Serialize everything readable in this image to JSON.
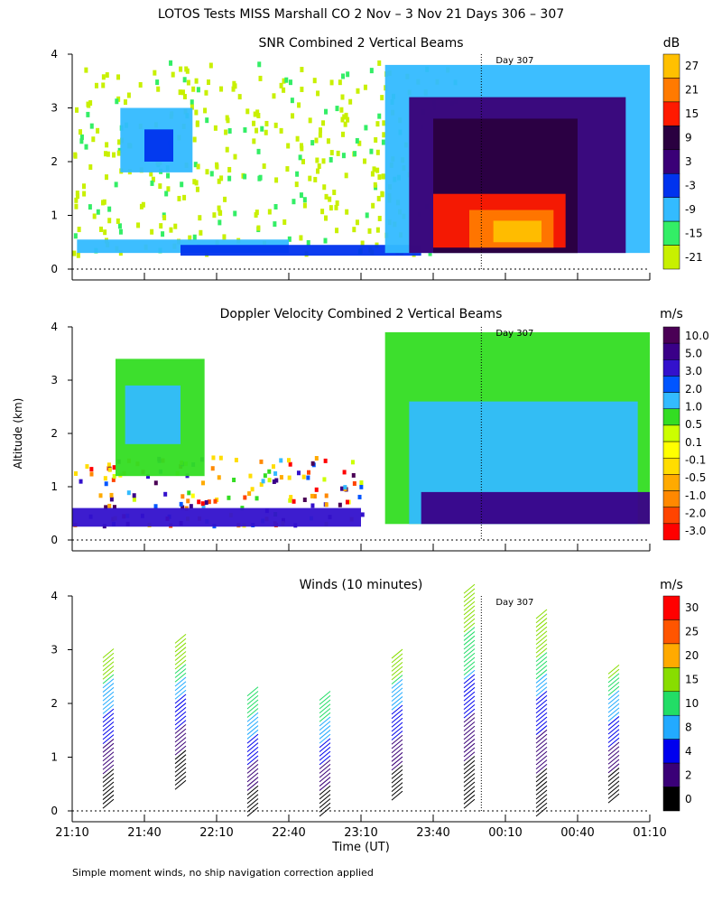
{
  "title": "LOTOS Tests MISS Marshall CO   2 Nov –  3 Nov 21 Days 306 – 307",
  "footnote": "Simple moment winds, no ship navigation correction applied",
  "day_marker_label": "Day 307",
  "x_axis": {
    "label": "Time (UT)",
    "ticks": [
      "21:10",
      "21:40",
      "22:10",
      "22:40",
      "23:10",
      "23:40",
      "00:10",
      "00:40",
      "01:10"
    ],
    "range_minutes": [
      0,
      240
    ],
    "day_boundary_minutes": 170
  },
  "y_axis": {
    "label": "Altitude (km)",
    "ticks": [
      "0",
      "1",
      "2",
      "3",
      "4"
    ],
    "range_km": [
      0,
      4
    ]
  },
  "colors": {
    "snr": [
      "#c8f000",
      "#33ee66",
      "#33bbff",
      "#0033ee",
      "#3a0077",
      "#2a0040",
      "#ff1a00",
      "#ff7a00",
      "#ffc000"
    ],
    "velocity": [
      "#ff0000",
      "#ff4400",
      "#ff8800",
      "#ffaa00",
      "#ffdd00",
      "#ffff00",
      "#ccff00",
      "#33dd22",
      "#33bbff",
      "#0055ff",
      "#3311cc",
      "#3a0088",
      "#4a0055"
    ],
    "winds": [
      "#000000",
      "#3a0077",
      "#0000ee",
      "#22aaff",
      "#22dd66",
      "#88dd00",
      "#ffaa00",
      "#ff5500",
      "#ff0000"
    ]
  },
  "chart_data": [
    {
      "type": "heatmap",
      "title": "SNR Combined 2 Vertical Beams",
      "unit": "dB",
      "colorbar_labels": [
        "27",
        "21",
        "15",
        "9",
        "3",
        "-3",
        "-9",
        "-15",
        "-21"
      ],
      "x_range_minutes": [
        0,
        240
      ],
      "y_range_km": [
        0,
        4
      ],
      "regions": [
        {
          "x0": 2,
          "x1": 90,
          "y0": 0.3,
          "y1": 0.55,
          "v": -9
        },
        {
          "x0": 45,
          "x1": 145,
          "y0": 0.25,
          "y1": 0.45,
          "v": -3
        },
        {
          "x0": 20,
          "x1": 50,
          "y0": 1.8,
          "y1": 3.0,
          "v": -9
        },
        {
          "x0": 30,
          "x1": 42,
          "y0": 2.0,
          "y1": 2.6,
          "v": -3
        },
        {
          "x0": 130,
          "x1": 240,
          "y0": 0.3,
          "y1": 3.8,
          "v": -9
        },
        {
          "x0": 140,
          "x1": 230,
          "y0": 0.3,
          "y1": 3.2,
          "v": 3
        },
        {
          "x0": 150,
          "x1": 210,
          "y0": 0.3,
          "y1": 2.8,
          "v": 9
        },
        {
          "x0": 150,
          "x1": 205,
          "y0": 0.4,
          "y1": 1.4,
          "v": 15
        },
        {
          "x0": 165,
          "x1": 200,
          "y0": 0.4,
          "y1": 1.1,
          "v": 21
        },
        {
          "x0": 175,
          "x1": 195,
          "y0": 0.5,
          "y1": 0.9,
          "v": 27
        }
      ]
    },
    {
      "type": "heatmap",
      "title": "Doppler Velocity Combined 2 Vertical Beams",
      "unit": "m/s",
      "colorbar_labels": [
        "10.0",
        "5.0",
        "3.0",
        "2.0",
        "1.0",
        "0.5",
        "0.1",
        "-0.1",
        "-0.5",
        "-1.0",
        "-2.0",
        "-3.0"
      ],
      "x_range_minutes": [
        0,
        240
      ],
      "y_range_km": [
        0,
        4
      ],
      "regions": [
        {
          "x0": 18,
          "x1": 55,
          "y0": 1.2,
          "y1": 3.4,
          "v": 0.5
        },
        {
          "x0": 22,
          "x1": 45,
          "y0": 1.8,
          "y1": 2.9,
          "v": 1.0
        },
        {
          "x0": 130,
          "x1": 240,
          "y0": 0.3,
          "y1": 3.9,
          "v": 0.5
        },
        {
          "x0": 140,
          "x1": 235,
          "y0": 0.3,
          "y1": 2.6,
          "v": 1.0
        },
        {
          "x0": 145,
          "x1": 240,
          "y0": 0.3,
          "y1": 0.9,
          "v": 5.0
        },
        {
          "x0": 0,
          "x1": 120,
          "y0": 0.25,
          "y1": 0.6,
          "v": 3.0
        }
      ]
    },
    {
      "type": "scatter",
      "title": "Winds (10 minutes)",
      "unit": "m/s",
      "colorbar_labels": [
        "30",
        "25",
        "20",
        "15",
        "10",
        "8",
        "4",
        "2",
        "0"
      ],
      "x_range_minutes": [
        0,
        240
      ],
      "y_range_km": [
        0,
        4
      ],
      "profiles": [
        {
          "time_min": 15,
          "top_km": 3.0,
          "bottom_km": 0.15
        },
        {
          "time_min": 45,
          "top_km": 3.3,
          "bottom_km": 0.5
        },
        {
          "time_min": 75,
          "top_km": 2.3,
          "bottom_km": 0.0
        },
        {
          "time_min": 105,
          "top_km": 2.2,
          "bottom_km": 0.0
        },
        {
          "time_min": 135,
          "top_km": 3.0,
          "bottom_km": 0.3
        },
        {
          "time_min": 165,
          "top_km": 4.2,
          "bottom_km": 0.15
        },
        {
          "time_min": 195,
          "top_km": 3.7,
          "bottom_km": 0.0
        },
        {
          "time_min": 225,
          "top_km": 2.7,
          "bottom_km": 0.25
        }
      ]
    }
  ]
}
